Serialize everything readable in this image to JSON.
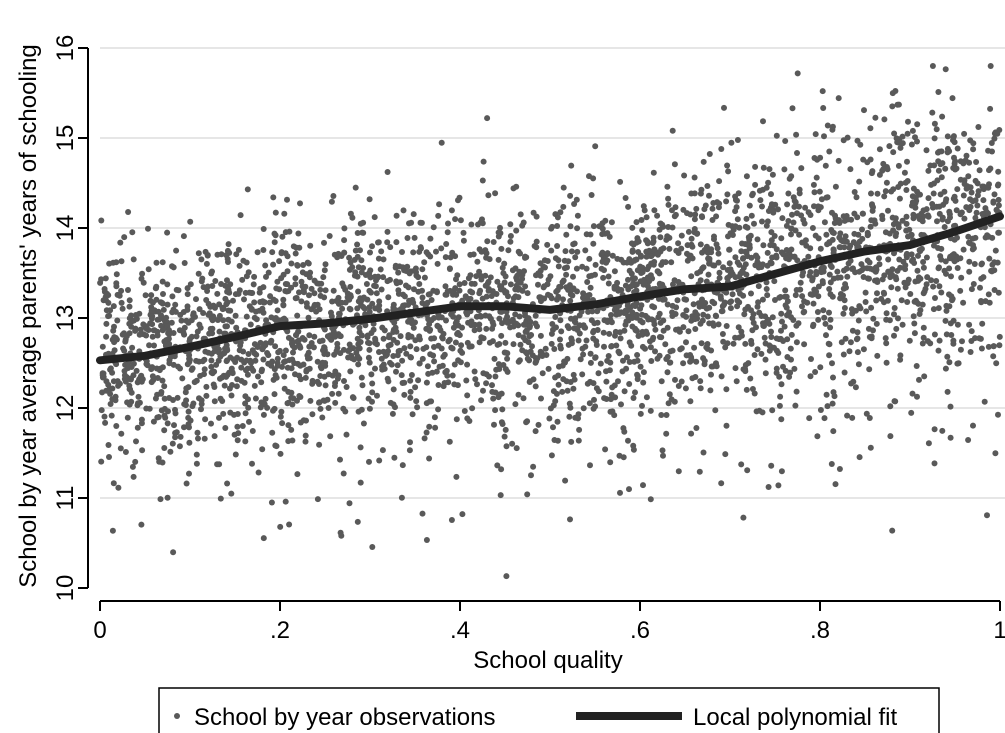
{
  "chart_data": {
    "type": "scatter",
    "xlabel": "School quality",
    "ylabel": "School by year average parents' years of schooling",
    "xlim": [
      0,
      1
    ],
    "ylim": [
      10,
      16
    ],
    "x_ticks": [
      {
        "value": 0,
        "label": "0"
      },
      {
        "value": 0.2,
        "label": ".2"
      },
      {
        "value": 0.4,
        "label": ".4"
      },
      {
        "value": 0.6,
        "label": ".6"
      },
      {
        "value": 0.8,
        "label": ".8"
      },
      {
        "value": 1,
        "label": "1"
      }
    ],
    "y_ticks": [
      {
        "value": 10,
        "label": "10"
      },
      {
        "value": 11,
        "label": "11"
      },
      {
        "value": 12,
        "label": "12"
      },
      {
        "value": 13,
        "label": "13"
      },
      {
        "value": 14,
        "label": "14"
      },
      {
        "value": 15,
        "label": "15"
      },
      {
        "value": 16,
        "label": "16"
      }
    ],
    "grid": "horizontal",
    "legend_position": "bottom",
    "series": [
      {
        "name": "School by year observations",
        "kind": "scatter",
        "color": "#595959",
        "approx_points": 3600,
        "trend_points": {
          "x": [
            0.0,
            0.1,
            0.2,
            0.3,
            0.4,
            0.5,
            0.6,
            0.7,
            0.8,
            0.9,
            1.0
          ],
          "y": [
            12.6,
            12.75,
            12.9,
            13.0,
            13.1,
            13.1,
            13.25,
            13.4,
            13.65,
            13.85,
            14.15
          ]
        },
        "spread_sd": [
          0.55,
          0.55,
          0.55,
          0.55,
          0.55,
          0.6,
          0.6,
          0.65,
          0.7,
          0.75,
          0.75
        ]
      },
      {
        "name": "Local polynomial fit",
        "kind": "line",
        "color": "#222222",
        "x": [
          0.0,
          0.05,
          0.1,
          0.15,
          0.2,
          0.25,
          0.3,
          0.35,
          0.4,
          0.45,
          0.5,
          0.55,
          0.6,
          0.65,
          0.7,
          0.75,
          0.8,
          0.85,
          0.9,
          0.95,
          1.0
        ],
        "y": [
          12.53,
          12.58,
          12.68,
          12.79,
          12.91,
          12.94,
          12.99,
          13.06,
          13.13,
          13.13,
          13.09,
          13.15,
          13.24,
          13.32,
          13.35,
          13.49,
          13.63,
          13.74,
          13.81,
          13.96,
          14.13
        ]
      }
    ]
  }
}
